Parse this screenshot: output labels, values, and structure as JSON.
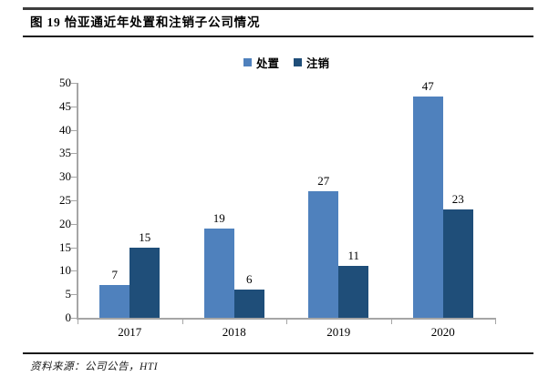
{
  "figure_title": "图 19 怡亚通近年处置和注销子公司情况",
  "source_note": "资料来源：公司公告，HTI",
  "chart_data": {
    "type": "bar",
    "title": "图 19 怡亚通近年处置和注销子公司情况",
    "categories": [
      "2017",
      "2018",
      "2019",
      "2020"
    ],
    "series": [
      {
        "key": "disposal",
        "name": "处置",
        "color": "#4F81BD",
        "values": [
          7,
          19,
          27,
          47
        ]
      },
      {
        "key": "deregistration",
        "name": "注销",
        "color": "#1F4E79",
        "values": [
          15,
          6,
          11,
          23
        ]
      }
    ],
    "ylim": [
      0,
      50
    ],
    "ytick_step": 5,
    "grid": false,
    "legend_position": "top",
    "data_labels": true,
    "axis_color": "#A6A6A6",
    "label_color": "#000000"
  }
}
